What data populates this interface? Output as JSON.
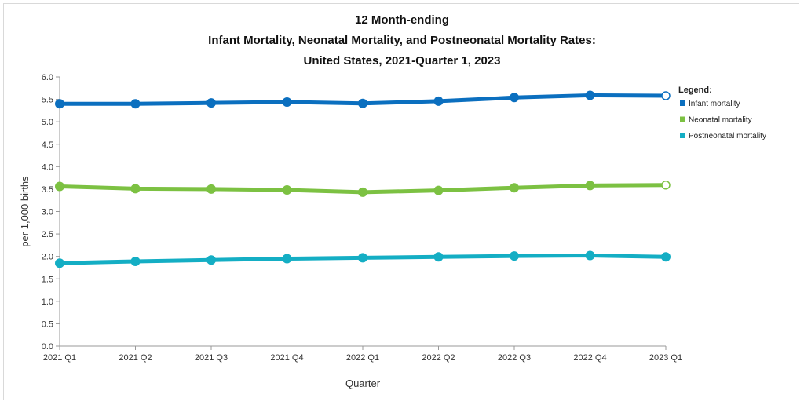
{
  "chart_data": {
    "type": "line",
    "title_lines": [
      "12 Month-ending",
      "Infant Mortality, Neonatal Mortality, and Postneonatal Mortality Rates:",
      "United States, 2021-Quarter 1, 2023"
    ],
    "xlabel": "Quarter",
    "ylabel": "per 1,000 births",
    "ylim": [
      0,
      6
    ],
    "yticks": [
      "0.0",
      "0.5",
      "1.0",
      "1.5",
      "2.0",
      "2.5",
      "3.0",
      "3.5",
      "4.0",
      "4.5",
      "5.0",
      "5.5",
      "6.0"
    ],
    "categories": [
      "2021 Q1",
      "2021 Q2",
      "2021 Q3",
      "2021 Q4",
      "2022 Q1",
      "2022 Q2",
      "2022 Q3",
      "2022 Q4",
      "2023 Q1"
    ],
    "legend_title": "Legend:",
    "legend_position": "right",
    "grid": false,
    "series": [
      {
        "name": "Infant mortality",
        "color": "#0b6fbf",
        "values": [
          5.4,
          5.4,
          5.42,
          5.44,
          5.41,
          5.46,
          5.54,
          5.59,
          5.58
        ],
        "last_point_provisional": true
      },
      {
        "name": "Neonatal mortality",
        "color": "#7cc142",
        "values": [
          3.56,
          3.51,
          3.5,
          3.48,
          3.43,
          3.47,
          3.53,
          3.58,
          3.59
        ],
        "last_point_provisional": true
      },
      {
        "name": "Postneonatal mortality",
        "color": "#14aec4",
        "values": [
          1.85,
          1.89,
          1.92,
          1.95,
          1.97,
          1.99,
          2.01,
          2.02,
          1.99
        ],
        "last_point_provisional": false
      }
    ]
  }
}
